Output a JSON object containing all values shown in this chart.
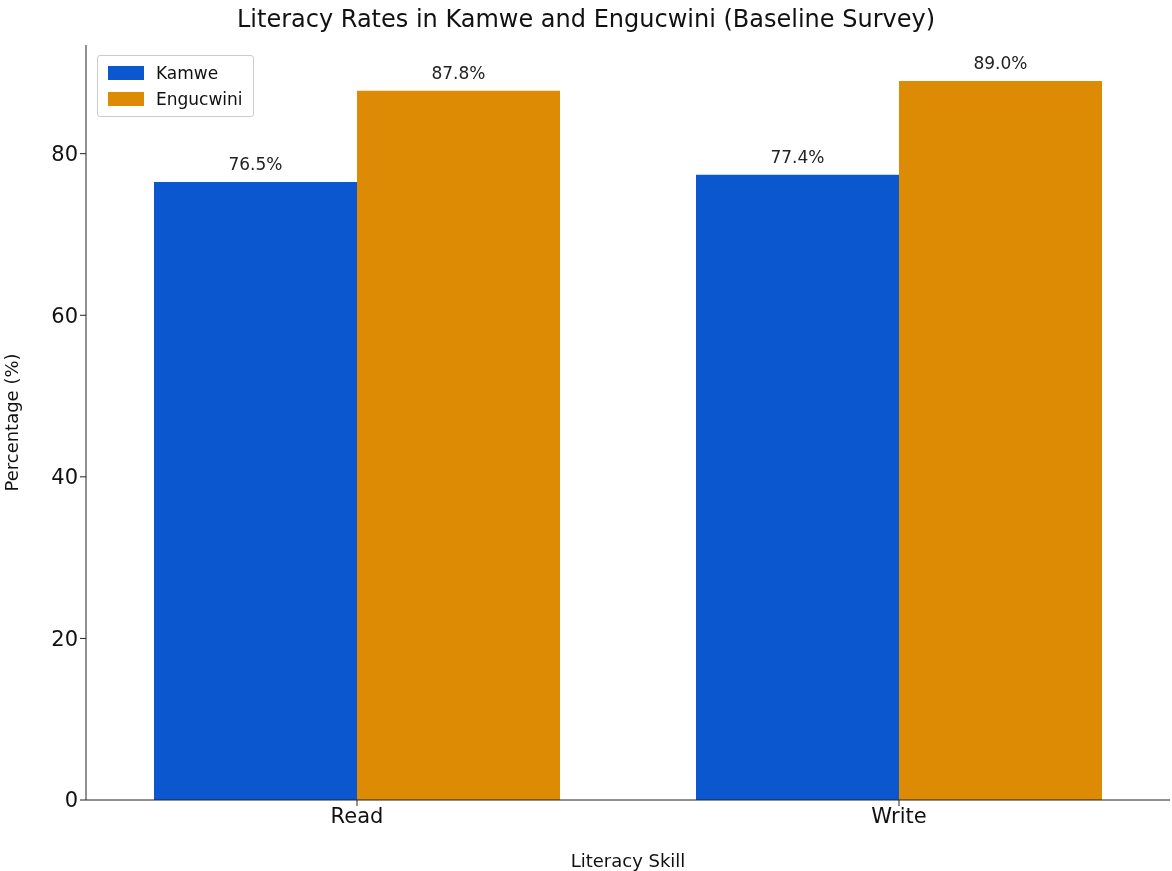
{
  "chart_data": {
    "type": "bar",
    "title": "Literacy Rates in Kamwe and Engucwini (Baseline Survey)",
    "xlabel": "Literacy Skill",
    "ylabel": "Percentage (%)",
    "categories": [
      "Read",
      "Write"
    ],
    "series": [
      {
        "name": "Kamwe",
        "color": "#0b57d0",
        "values": [
          76.5,
          77.4
        ],
        "value_labels": [
          "76.5%",
          "77.4%"
        ]
      },
      {
        "name": "Engucwini",
        "color": "#dd8a04",
        "values": [
          87.8,
          89.0
        ],
        "value_labels": [
          "87.8%",
          "89.0%"
        ]
      }
    ],
    "ylim": [
      0,
      93.45
    ],
    "yticks": [
      0,
      20,
      40,
      60,
      80
    ],
    "legend": "top left",
    "grid": false
  }
}
